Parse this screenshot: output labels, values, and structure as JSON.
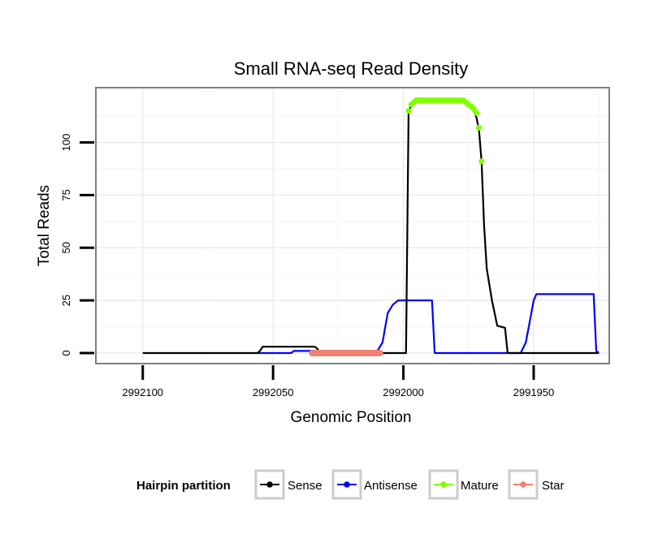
{
  "chart_data": {
    "type": "line",
    "title": "Small RNA-seq Read Density",
    "xlabel": "Genomic Position",
    "ylabel": "Total Reads",
    "xlim": [
      2992118,
      2991921
    ],
    "x_reversed": true,
    "ylim": [
      -5,
      126
    ],
    "x_ticks": [
      2992100,
      2992050,
      2992000,
      2991950
    ],
    "x_tick_labels": [
      "2992100",
      "2992050",
      "2992000",
      "2991950"
    ],
    "y_ticks": [
      0,
      25,
      50,
      75,
      100
    ],
    "y_tick_labels": [
      "0",
      "25",
      "50",
      "75",
      "100"
    ],
    "grid": true,
    "legend": {
      "title": "Hairpin partition",
      "position": "bottom",
      "entries": [
        {
          "label": "Sense",
          "color": "#000000"
        },
        {
          "label": "Antisense",
          "color": "#0000FF"
        },
        {
          "label": "Mature",
          "color": "#7FFF00"
        },
        {
          "label": "Star",
          "color": "#F08070"
        }
      ]
    },
    "series": [
      {
        "name": "Sense",
        "color": "#000000",
        "style": "line",
        "points": [
          [
            2992100,
            0
          ],
          [
            2992056,
            0
          ],
          [
            2992055,
            1
          ],
          [
            2992054,
            3
          ],
          [
            2992049,
            3
          ],
          [
            2992034,
            3
          ],
          [
            2992033,
            2
          ],
          [
            2992032,
            0
          ],
          [
            2992009,
            0
          ],
          [
            2991999,
            0
          ],
          [
            2991998,
            115
          ],
          [
            2991996,
            120
          ],
          [
            2991977,
            120
          ],
          [
            2991975,
            118
          ],
          [
            2991973,
            115
          ],
          [
            2991972,
            112
          ],
          [
            2991971,
            106
          ],
          [
            2991970,
            91
          ],
          [
            2991969,
            60
          ],
          [
            2991968,
            40
          ],
          [
            2991966,
            25
          ],
          [
            2991964,
            13
          ],
          [
            2991961,
            12
          ],
          [
            2991960,
            0
          ],
          [
            2991925,
            0
          ]
        ]
      },
      {
        "name": "Antisense",
        "color": "#0000FF",
        "style": "line",
        "points": [
          [
            2992056,
            0
          ],
          [
            2992043,
            0
          ],
          [
            2992042,
            1
          ],
          [
            2992036,
            1
          ],
          [
            2992010,
            1
          ],
          [
            2992008,
            5
          ],
          [
            2992006,
            19
          ],
          [
            2992004,
            23
          ],
          [
            2992002,
            25
          ],
          [
            2991989,
            25
          ],
          [
            2991988,
            0
          ],
          [
            2991955,
            0
          ],
          [
            2991953,
            5
          ],
          [
            2991950,
            25
          ],
          [
            2991949,
            28
          ],
          [
            2991927,
            28
          ],
          [
            2991926,
            1
          ],
          [
            2991925,
            0
          ]
        ]
      },
      {
        "name": "Mature",
        "color": "#7FFF00",
        "style": "points",
        "points": [
          [
            2991998,
            115
          ],
          [
            2991997,
            118
          ],
          [
            2991996,
            119
          ],
          [
            2991995,
            120
          ],
          [
            2991994,
            120
          ],
          [
            2991993,
            120
          ],
          [
            2991992,
            120
          ],
          [
            2991991,
            120
          ],
          [
            2991990,
            120
          ],
          [
            2991989,
            120
          ],
          [
            2991988,
            120
          ],
          [
            2991987,
            120
          ],
          [
            2991986,
            120
          ],
          [
            2991985,
            120
          ],
          [
            2991984,
            120
          ],
          [
            2991983,
            120
          ],
          [
            2991982,
            120
          ],
          [
            2991981,
            120
          ],
          [
            2991980,
            120
          ],
          [
            2991979,
            120
          ],
          [
            2991978,
            120
          ],
          [
            2991977,
            120
          ],
          [
            2991976,
            119
          ],
          [
            2991975,
            118
          ],
          [
            2991974,
            117
          ],
          [
            2991973,
            116
          ],
          [
            2991972,
            114
          ],
          [
            2991971,
            107
          ],
          [
            2991970,
            91
          ]
        ]
      },
      {
        "name": "Star",
        "color": "#F08070",
        "style": "line",
        "points": [
          [
            2992035,
            0
          ],
          [
            2992009,
            0
          ]
        ]
      }
    ]
  }
}
